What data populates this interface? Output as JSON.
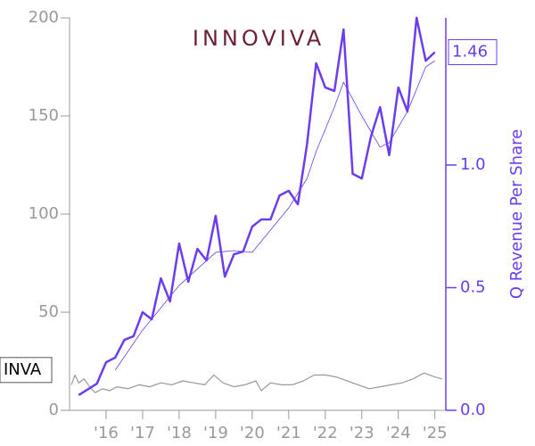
{
  "chart_data": {
    "type": "line",
    "logo": "INNOVIVA",
    "y2label": "Q Revenue Per Share",
    "xlim": [
      2015,
      2025.3
    ],
    "xticks": [
      {
        "value": 2016,
        "label": "'16"
      },
      {
        "value": 2017,
        "label": "'17"
      },
      {
        "value": 2018,
        "label": "'18"
      },
      {
        "value": 2019,
        "label": "'19"
      },
      {
        "value": 2020,
        "label": "'20"
      },
      {
        "value": 2021,
        "label": "'21"
      },
      {
        "value": 2022,
        "label": "'22"
      },
      {
        "value": 2023,
        "label": "'23"
      },
      {
        "value": 2024,
        "label": "'24"
      },
      {
        "value": 2025,
        "label": "'25"
      }
    ],
    "ylim": [
      0,
      200
    ],
    "yticks": [
      0,
      50,
      100,
      150,
      200
    ],
    "y2lim": [
      0,
      1.6
    ],
    "y2ticks": [
      {
        "value": 0,
        "label": "0.0"
      },
      {
        "value": 0.5,
        "label": "0.5"
      },
      {
        "value": 1,
        "label": "1.0"
      }
    ],
    "axis_color": "#999999",
    "y2_color": "#6a3df0",
    "series": [
      {
        "name": "INVA",
        "color": "#999999",
        "axis": "y",
        "x": [
          2015.05,
          2015.15,
          2015.25,
          2015.4,
          2015.55,
          2015.7,
          2015.9,
          2016.1,
          2016.3,
          2016.6,
          2016.9,
          2017.2,
          2017.5,
          2017.8,
          2018.1,
          2018.4,
          2018.7,
          2018.95,
          2019.2,
          2019.5,
          2019.8,
          2020.1,
          2020.25,
          2020.5,
          2020.8,
          2021.1,
          2021.4,
          2021.7,
          2022.0,
          2022.3,
          2022.6,
          2022.9,
          2023.2,
          2023.5,
          2023.8,
          2024.1,
          2024.4,
          2024.7,
          2025.0,
          2025.2
        ],
        "values": [
          13,
          18,
          14,
          16,
          12,
          9,
          11,
          10,
          12,
          11,
          13,
          12,
          14,
          13,
          15,
          14,
          13,
          18,
          14,
          12,
          13,
          15,
          10,
          14,
          13,
          13,
          15,
          18,
          18,
          17,
          15,
          13,
          11,
          12,
          13,
          14,
          16,
          19,
          17,
          16
        ]
      },
      {
        "color": "#6a3df0",
        "axis": "y2",
        "x": [
          2015.25,
          2015.75,
          2016.0,
          2016.25,
          2016.5,
          2016.75,
          2017.0,
          2017.25,
          2017.5,
          2017.75,
          2018.0,
          2018.25,
          2018.5,
          2018.75,
          2019.0,
          2019.25,
          2019.5,
          2019.75,
          2020.0,
          2020.25,
          2020.5,
          2020.75,
          2021.0,
          2021.25,
          2021.5,
          2021.75,
          2022.0,
          2022.25,
          2022.5,
          2022.75,
          2023.0,
          2023.25,
          2023.5,
          2023.75,
          2024.0,
          2024.25,
          2024.5,
          2024.75,
          2025.0
        ],
        "values": [
          0.062,
          0.109,
          0.196,
          0.215,
          0.287,
          0.302,
          0.4,
          0.371,
          0.538,
          0.444,
          0.68,
          0.524,
          0.658,
          0.611,
          0.793,
          0.545,
          0.636,
          0.647,
          0.749,
          0.778,
          0.778,
          0.876,
          0.895,
          0.84,
          1.084,
          1.415,
          1.316,
          1.302,
          1.553,
          0.964,
          0.945,
          1.116,
          1.236,
          1.04,
          1.316,
          1.218,
          1.6,
          1.425,
          1.46
        ]
      },
      {
        "color": "#6a3df0",
        "axis": "y2",
        "x": [
          2016.25,
          2017.0,
          2018.0,
          2019.0,
          2019.5,
          2020.0,
          2020.5,
          2021.0,
          2021.5,
          2021.75,
          2022.25,
          2022.5,
          2023.0,
          2023.5,
          2023.75,
          2024.25,
          2024.75,
          2025.0
        ],
        "values": [
          0.164,
          0.327,
          0.509,
          0.644,
          0.651,
          0.644,
          0.735,
          0.825,
          0.945,
          1.055,
          1.236,
          1.338,
          1.2,
          1.073,
          1.091,
          1.218,
          1.4,
          1.425
        ]
      }
    ]
  }
}
